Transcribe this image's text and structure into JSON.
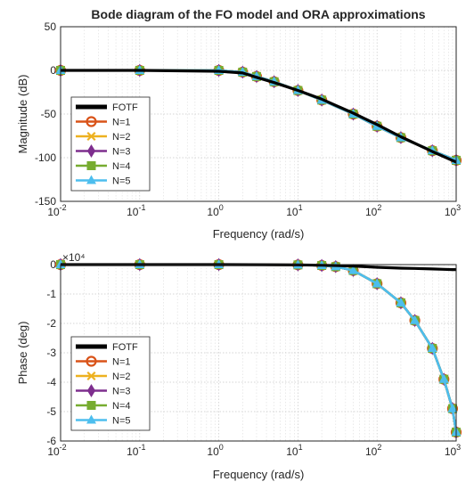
{
  "figure": {
    "title": "Bode diagram of the FO model and ORA approximations"
  },
  "colors": {
    "FOTF": "#000000",
    "N=1": "#D95319",
    "N=2": "#EDB120",
    "N=3": "#7E2F8E",
    "N=4": "#77AC30",
    "N=5": "#4DBEEE"
  },
  "chart_data": [
    {
      "type": "line",
      "title": "Bode diagram of the FO model and ORA approximations",
      "xlabel": "Frequency (rad/s)",
      "ylabel": "Magnitude (dB)",
      "xscale": "log",
      "xlim": [
        0.01,
        1000
      ],
      "ylim": [
        -150,
        50
      ],
      "xticks": [
        "10^-2",
        "10^-1",
        "10^0",
        "10^1",
        "10^2",
        "10^3"
      ],
      "yticks": [
        50,
        0,
        -50,
        -100,
        -150
      ],
      "grid": true,
      "minor_grid": true,
      "legend": {
        "position": "bottom-left",
        "entries": [
          "FOTF",
          "N=1",
          "N=2",
          "N=3",
          "N=4",
          "N=5"
        ]
      },
      "x": [
        0.01,
        0.1,
        1,
        2,
        3,
        5,
        10,
        20,
        50,
        100,
        200,
        500,
        1000
      ],
      "series": [
        {
          "name": "FOTF",
          "marker": "none",
          "values": [
            0,
            0,
            -1,
            -3,
            -8,
            -14,
            -23,
            -33,
            -49,
            -62,
            -76,
            -93,
            -105
          ]
        },
        {
          "name": "N=1",
          "marker": "circle",
          "values": [
            0,
            0,
            0,
            -2,
            -7,
            -13,
            -23,
            -34,
            -50,
            -64,
            -77,
            -92,
            -103
          ]
        },
        {
          "name": "N=2",
          "marker": "x",
          "values": [
            0,
            0,
            0,
            -2,
            -7,
            -13,
            -23,
            -34,
            -50,
            -64,
            -77,
            -92,
            -103
          ]
        },
        {
          "name": "N=3",
          "marker": "diamond",
          "values": [
            0,
            0,
            0,
            -2,
            -7,
            -13,
            -23,
            -34,
            -50,
            -64,
            -77,
            -92,
            -103
          ]
        },
        {
          "name": "N=4",
          "marker": "square",
          "values": [
            0,
            0,
            0,
            -2,
            -7,
            -13,
            -23,
            -34,
            -50,
            -64,
            -77,
            -92,
            -103
          ]
        },
        {
          "name": "N=5",
          "marker": "triangle",
          "values": [
            0,
            0,
            0,
            -2,
            -7,
            -13,
            -23,
            -34,
            -50,
            -64,
            -77,
            -92,
            -103
          ]
        }
      ]
    },
    {
      "type": "line",
      "title": "",
      "xlabel": "Frequency (rad/s)",
      "ylabel": "Phase (deg)",
      "exponent_label": "×10⁴",
      "xscale": "log",
      "xlim": [
        0.01,
        1000
      ],
      "ylim": [
        -6,
        0
      ],
      "xticks": [
        "10^-2",
        "10^-1",
        "10^0",
        "10^1",
        "10^2",
        "10^3"
      ],
      "yticks": [
        0,
        -1,
        -2,
        -3,
        -4,
        -5,
        -6
      ],
      "grid": true,
      "minor_grid": true,
      "legend": {
        "position": "bottom-left",
        "entries": [
          "FOTF",
          "N=1",
          "N=2",
          "N=3",
          "N=4",
          "N=5"
        ]
      },
      "x": [
        0.01,
        0.1,
        1,
        10,
        20,
        30,
        50,
        100,
        200,
        300,
        500,
        700,
        900,
        1000
      ],
      "series": [
        {
          "name": "FOTF",
          "marker": "none",
          "values": [
            0,
            0,
            0,
            -0.01,
            -0.02,
            -0.03,
            -0.05,
            -0.09,
            -0.12,
            -0.13,
            -0.15,
            -0.16,
            -0.17,
            -0.17
          ]
        },
        {
          "name": "N=1",
          "marker": "circle",
          "values": [
            0,
            0,
            0,
            -0.01,
            -0.03,
            -0.07,
            -0.2,
            -0.65,
            -1.3,
            -1.9,
            -2.85,
            -3.9,
            -4.9,
            -5.7
          ]
        },
        {
          "name": "N=2",
          "marker": "x",
          "values": [
            0,
            0,
            0,
            -0.01,
            -0.03,
            -0.07,
            -0.2,
            -0.65,
            -1.3,
            -1.9,
            -2.85,
            -3.9,
            -4.9,
            -5.7
          ]
        },
        {
          "name": "N=3",
          "marker": "diamond",
          "values": [
            0,
            0,
            0,
            -0.01,
            -0.03,
            -0.07,
            -0.2,
            -0.65,
            -1.3,
            -1.9,
            -2.85,
            -3.9,
            -4.9,
            -5.7
          ]
        },
        {
          "name": "N=4",
          "marker": "square",
          "values": [
            0,
            0,
            0,
            -0.01,
            -0.03,
            -0.07,
            -0.2,
            -0.65,
            -1.3,
            -1.9,
            -2.85,
            -3.9,
            -4.9,
            -5.7
          ]
        },
        {
          "name": "N=5",
          "marker": "triangle",
          "values": [
            0,
            0,
            0,
            -0.01,
            -0.03,
            -0.07,
            -0.2,
            -0.65,
            -1.3,
            -1.9,
            -2.85,
            -3.9,
            -4.9,
            -5.7
          ]
        }
      ]
    }
  ]
}
